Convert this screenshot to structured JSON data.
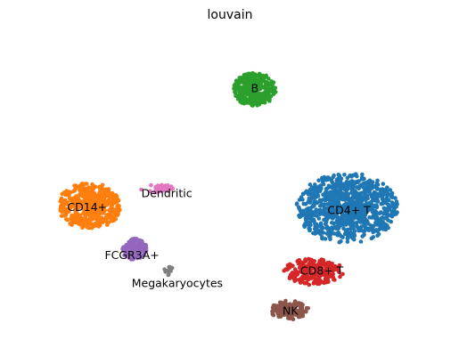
{
  "chart_data": {
    "type": "scatter",
    "title": "louvain",
    "xlabel": "",
    "ylabel": "",
    "xlim": [
      0,
      100
    ],
    "ylim": [
      0,
      100
    ],
    "grid": false,
    "axes_visible": false,
    "clusters": [
      {
        "label": "CD4+ T",
        "color": "#1f77b4",
        "center": [
          77.5,
          43.3
        ],
        "spread": [
          8.5,
          8.0
        ],
        "n": 900
      },
      {
        "label": "CD14+",
        "color": "#ff7f0e",
        "center": [
          16.0,
          43.8
        ],
        "spread": [
          5.3,
          5.3
        ],
        "n": 480
      },
      {
        "label": "B",
        "color": "#2ca02c",
        "center": [
          55.5,
          81.4
        ],
        "spread": [
          3.6,
          3.9
        ],
        "n": 340
      },
      {
        "label": "CD8+ T",
        "color": "#d62728",
        "center": [
          69.5,
          22.8
        ],
        "spread": [
          5.0,
          3.0
        ],
        "n": 230
      },
      {
        "label": "FCGR3A+",
        "color": "#9467bd",
        "center": [
          26.8,
          30.0
        ],
        "spread": [
          2.1,
          2.4
        ],
        "n": 170
      },
      {
        "label": "NK",
        "color": "#8c564b",
        "center": [
          63.8,
          10.5
        ],
        "spread": [
          3.2,
          2.2
        ],
        "n": 150
      },
      {
        "label": "Dendritic",
        "color": "#e377c2",
        "center": [
          32.5,
          49.5
        ],
        "spread": [
          3.0,
          1.1
        ],
        "n": 35
      },
      {
        "label": "Megakaryocytes",
        "color": "#7f7f7f",
        "center": [
          35.0,
          23.0
        ],
        "spread": [
          0.8,
          1.0
        ],
        "n": 12
      }
    ],
    "label_positions": {
      "B": [
        55.5,
        81.4
      ],
      "CD14+": [
        15.5,
        43.3
      ],
      "Dendritic": [
        34.5,
        47.7
      ],
      "CD4+ T": [
        78.0,
        42.3
      ],
      "FCGR3A+": [
        26.2,
        27.8
      ],
      "CD8+ T": [
        71.5,
        22.8
      ],
      "Megakaryocytes": [
        37.0,
        18.8
      ],
      "NK": [
        64.0,
        10.0
      ]
    }
  }
}
